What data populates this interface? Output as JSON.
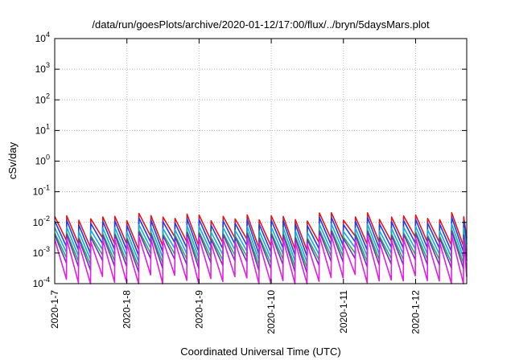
{
  "chart_data": {
    "type": "line",
    "title": "/data/run/goesPlots/archive/2020-01-12/17:00/flux/../bryn/5daysMars.plot",
    "xlabel": "Coordinated Universal Time (UTC)",
    "ylabel": "cSv/day",
    "yscale": "log",
    "ylim": [
      0.0001,
      10000
    ],
    "yticks": [
      {
        "base": "10",
        "exp": "-4",
        "value": 0.0001
      },
      {
        "base": "10",
        "exp": "-3",
        "value": 0.001
      },
      {
        "base": "10",
        "exp": "-2",
        "value": 0.01
      },
      {
        "base": "10",
        "exp": "-1",
        "value": 0.1
      },
      {
        "base": "10",
        "exp": "0",
        "value": 1
      },
      {
        "base": "10",
        "exp": "1",
        "value": 10
      },
      {
        "base": "10",
        "exp": "2",
        "value": 100
      },
      {
        "base": "10",
        "exp": "3",
        "value": 1000
      },
      {
        "base": "10",
        "exp": "4",
        "value": 10000
      }
    ],
    "xlim": [
      "2020-01-07",
      "2020-01-12T17:00"
    ],
    "xticks": [
      "2020-1-7",
      "2020-1-8",
      "2020-1-9",
      "2020-1-10",
      "2020-1-11",
      "2020-1-12"
    ],
    "grid": true,
    "description_units": "x in days from 2020-01-07 00:00 UTC",
    "sawtooth": {
      "period_hours": 4,
      "peak_day_range": [
        0.0,
        5.7
      ]
    },
    "series": [
      {
        "color": "#e8141c",
        "peak": 0.014,
        "trough": 0.0022
      },
      {
        "color": "#1e3fe0",
        "peak": 0.01,
        "trough": 0.0014
      },
      {
        "color": "#18a8e8",
        "peak": 0.006,
        "trough": 0.0009
      },
      {
        "color": "#20b858",
        "peak": 0.004,
        "trough": 0.0006
      },
      {
        "color": "#7030c0",
        "peak": 0.0035,
        "trough": 0.0004
      },
      {
        "color": "#e020e0",
        "peak": 0.0025,
        "trough": 0.00012
      }
    ]
  }
}
